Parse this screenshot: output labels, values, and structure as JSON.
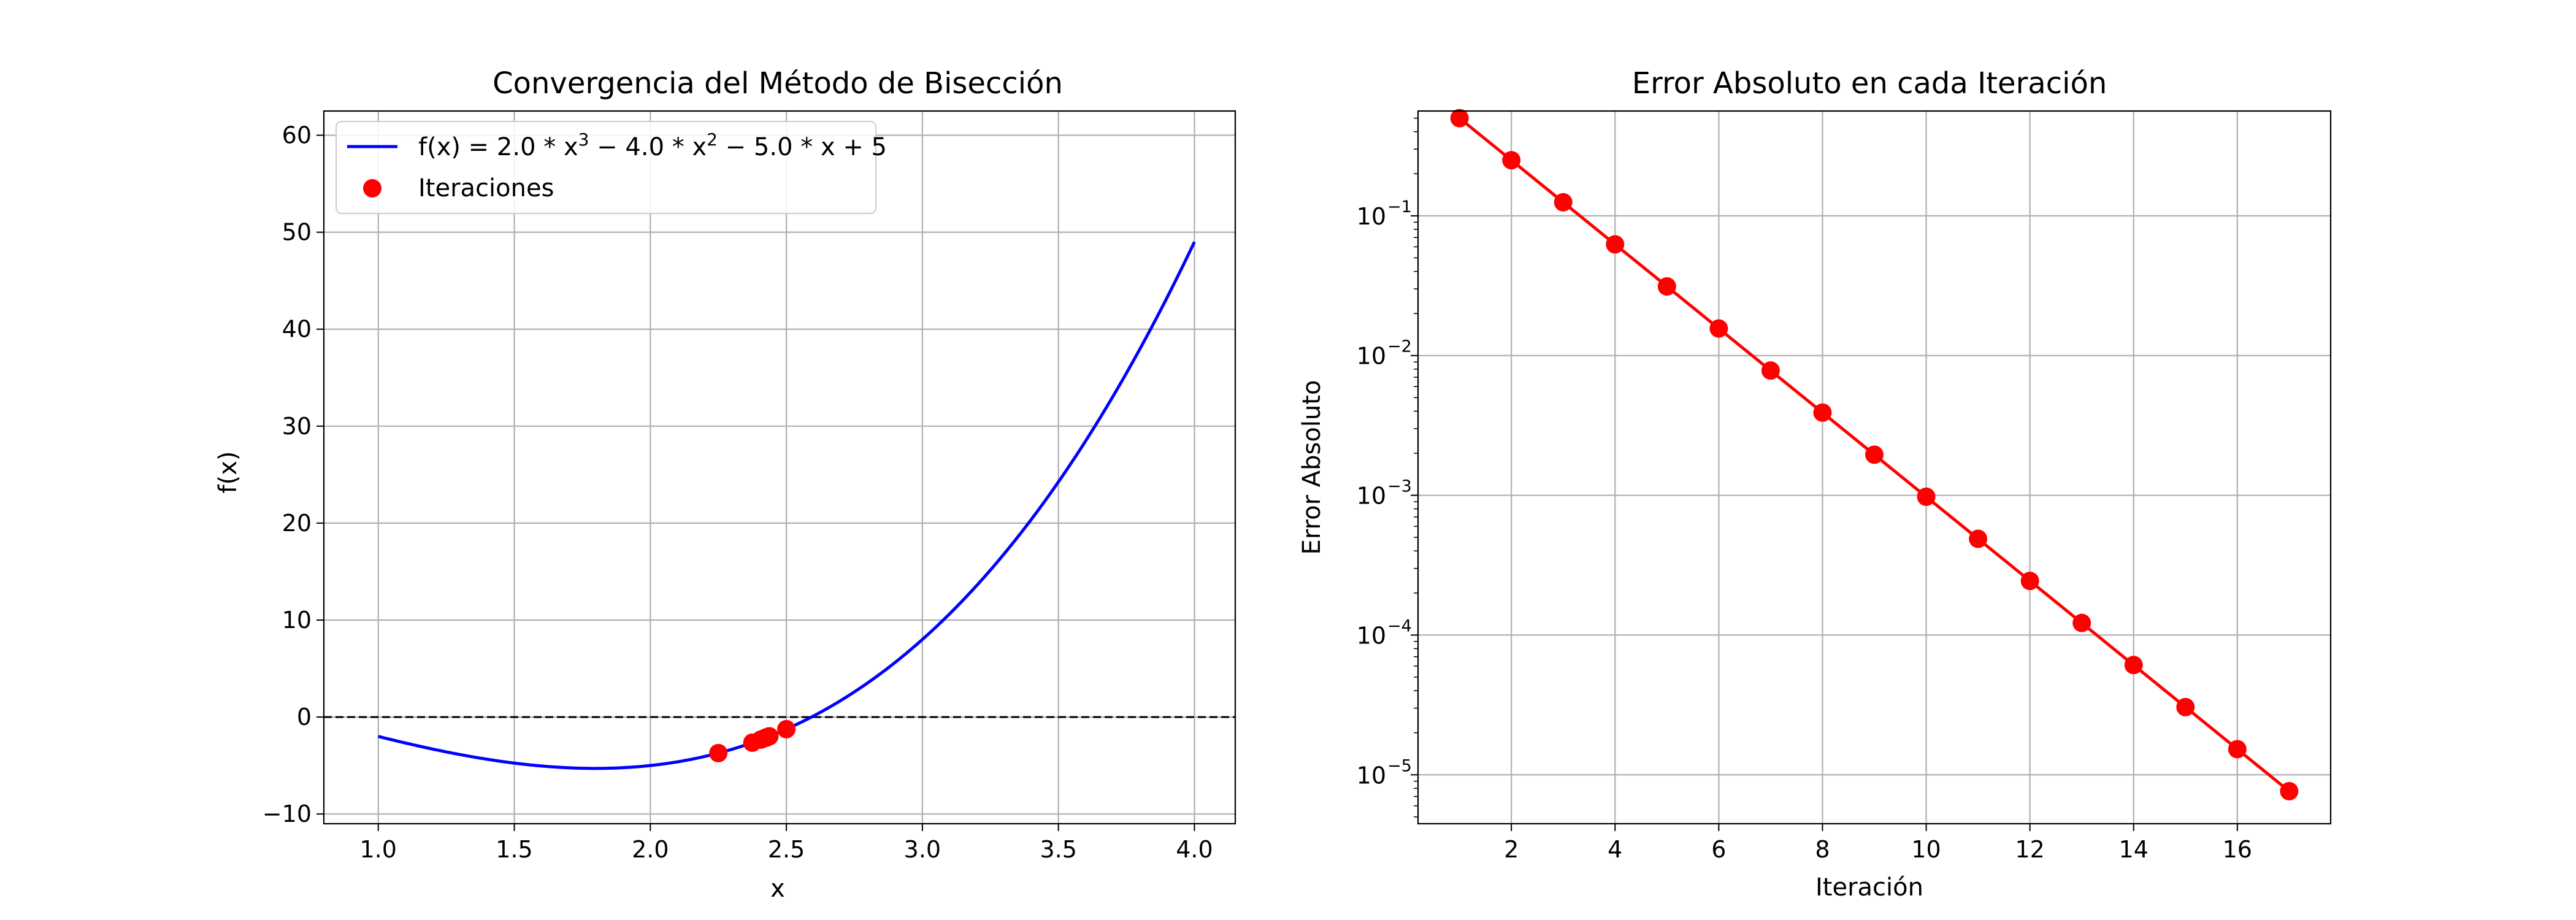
{
  "chart_data": [
    {
      "type": "line",
      "title": "Convergencia del Método de Bisección",
      "xlabel": "x",
      "ylabel": "f(x)",
      "xlim": [
        0.8,
        4.15
      ],
      "ylim": [
        -11,
        62.5
      ],
      "xticks": [
        1.0,
        1.5,
        2.0,
        2.5,
        3.0,
        3.5,
        4.0
      ],
      "xtick_labels": [
        "1.0",
        "1.5",
        "2.0",
        "2.5",
        "3.0",
        "3.5",
        "4.0"
      ],
      "yticks": [
        -10,
        0,
        10,
        20,
        30,
        40,
        50,
        60
      ],
      "ytick_labels": [
        "−10",
        "0",
        "10",
        "20",
        "30",
        "40",
        "50",
        "60"
      ],
      "grid": true,
      "legend_placement": "top-left",
      "function": {
        "a": 2.0,
        "b": -4.0,
        "c": -5.0,
        "d": 5,
        "domain": [
          1.0,
          4.0
        ]
      },
      "reference_line": {
        "y": 0,
        "style": "dashed",
        "color": "#000000"
      },
      "series": [
        {
          "name": "f(x) = 2.0 * x^3 − 4.0 * x^2 − 5.0 * x + 5",
          "kind": "line",
          "color": "#0000ff",
          "legend": {
            "prefix": "f(x) = 2.0 * x",
            "e1": "3",
            "mid": " − 4.0 * x",
            "e2": "2",
            "suffix": " − 5.0 * x + 5"
          }
        },
        {
          "name": "Iteraciones",
          "kind": "scatter",
          "color": "#ff0000",
          "x": [
            2.5,
            2.25,
            2.375,
            2.4375,
            2.40625,
            2.421875,
            2.4296875,
            2.42578125,
            2.427734375,
            2.4267578125,
            2.42626953125,
            2.426513671875,
            2.4263916015625,
            2.42633056640625,
            2.426300048828125,
            2.4263153076171875,
            2.4263229370117188
          ]
        }
      ]
    },
    {
      "type": "line",
      "title": "Error Absoluto en cada Iteración",
      "xlabel": "Iteración",
      "ylabel": "Error Absoluto",
      "yscale": "log",
      "xlim": [
        0.2,
        17.8
      ],
      "ylim_log10": [
        -5.35,
        -0.25
      ],
      "xticks": [
        2,
        4,
        6,
        8,
        10,
        12,
        14,
        16
      ],
      "xtick_labels": [
        "2",
        "4",
        "6",
        "8",
        "10",
        "12",
        "14",
        "16"
      ],
      "ytick_exponents": [
        -1,
        -2,
        -3,
        -4,
        -5
      ],
      "grid": true,
      "series": [
        {
          "kind": "line-markers",
          "color": "#ff0000",
          "x": [
            1,
            2,
            3,
            4,
            5,
            6,
            7,
            8,
            9,
            10,
            11,
            12,
            13,
            14,
            15,
            16,
            17
          ],
          "y": [
            0.5,
            0.25,
            0.125,
            0.0625,
            0.03125,
            0.015625,
            0.0078125,
            0.00390625,
            0.001953125,
            0.0009765625,
            0.00048828125,
            0.000244140625,
            0.0001220703125,
            6.103515625e-05,
            3.0517578125e-05,
            1.52587890625e-05,
            7.62939453125e-06
          ]
        }
      ]
    }
  ]
}
